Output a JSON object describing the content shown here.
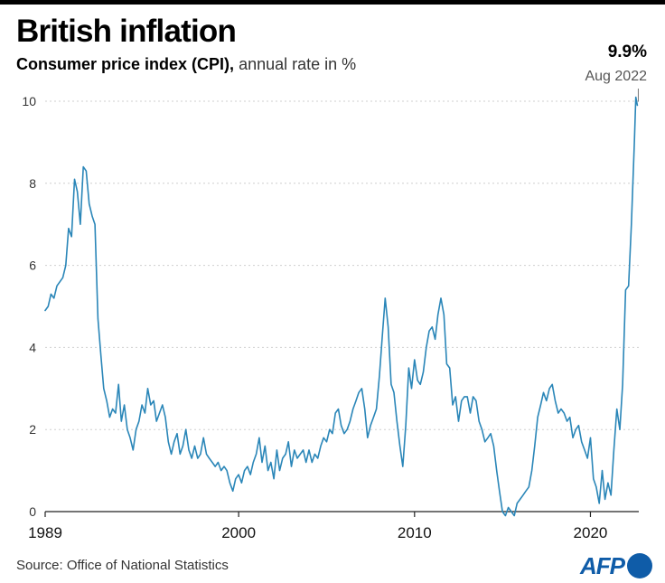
{
  "header": {
    "title": "British inflation",
    "subtitle_bold": "Consumer price index (CPI),",
    "subtitle_light": " annual rate in %"
  },
  "callout": {
    "value": "9.9%",
    "date": "Aug 2022"
  },
  "footer": {
    "source": "Source: Office of National Statistics",
    "logo": "AFP"
  },
  "colors": {
    "line": "#2a86b8",
    "grid": "#cfcfcf",
    "axis": "#222222",
    "brand": "#0f5ca8"
  },
  "chart_data": {
    "type": "line",
    "title": "British inflation",
    "subtitle": "Consumer price index (CPI), annual rate in %",
    "ylim": [
      0,
      10
    ],
    "xlim": [
      1989.0,
      2022.75
    ],
    "yticks": [
      0,
      2,
      4,
      6,
      8,
      10
    ],
    "xticks": [
      {
        "value": 1989,
        "label": "1989"
      },
      {
        "value": 2000,
        "label": "2000"
      },
      {
        "value": 2010,
        "label": "2010"
      },
      {
        "value": 2020,
        "label": "2020"
      }
    ],
    "grid": "horizontal dotted",
    "series": [
      {
        "points": [
          [
            1989.0,
            4.9
          ],
          [
            1989.17,
            5.0
          ],
          [
            1989.33,
            5.3
          ],
          [
            1989.5,
            5.2
          ],
          [
            1989.67,
            5.5
          ],
          [
            1989.83,
            5.6
          ],
          [
            1990.0,
            5.7
          ],
          [
            1990.17,
            6.0
          ],
          [
            1990.33,
            6.9
          ],
          [
            1990.5,
            6.7
          ],
          [
            1990.67,
            8.1
          ],
          [
            1990.83,
            7.8
          ],
          [
            1991.0,
            7.0
          ],
          [
            1991.17,
            8.4
          ],
          [
            1991.33,
            8.3
          ],
          [
            1991.5,
            7.5
          ],
          [
            1991.67,
            7.2
          ],
          [
            1991.83,
            7.0
          ],
          [
            1992.0,
            4.7
          ],
          [
            1992.17,
            3.8
          ],
          [
            1992.33,
            3.0
          ],
          [
            1992.5,
            2.7
          ],
          [
            1992.67,
            2.3
          ],
          [
            1992.83,
            2.5
          ],
          [
            1993.0,
            2.4
          ],
          [
            1993.17,
            3.1
          ],
          [
            1993.33,
            2.2
          ],
          [
            1993.5,
            2.6
          ],
          [
            1993.67,
            2.0
          ],
          [
            1993.83,
            1.8
          ],
          [
            1994.0,
            1.5
          ],
          [
            1994.17,
            2.0
          ],
          [
            1994.33,
            2.2
          ],
          [
            1994.5,
            2.6
          ],
          [
            1994.67,
            2.4
          ],
          [
            1994.83,
            3.0
          ],
          [
            1995.0,
            2.6
          ],
          [
            1995.17,
            2.7
          ],
          [
            1995.33,
            2.2
          ],
          [
            1995.5,
            2.4
          ],
          [
            1995.67,
            2.6
          ],
          [
            1995.83,
            2.3
          ],
          [
            1996.0,
            1.7
          ],
          [
            1996.17,
            1.4
          ],
          [
            1996.33,
            1.7
          ],
          [
            1996.5,
            1.9
          ],
          [
            1996.67,
            1.4
          ],
          [
            1996.83,
            1.6
          ],
          [
            1997.0,
            2.0
          ],
          [
            1997.17,
            1.5
          ],
          [
            1997.33,
            1.3
          ],
          [
            1997.5,
            1.6
          ],
          [
            1997.67,
            1.3
          ],
          [
            1997.83,
            1.4
          ],
          [
            1998.0,
            1.8
          ],
          [
            1998.17,
            1.4
          ],
          [
            1998.33,
            1.3
          ],
          [
            1998.5,
            1.2
          ],
          [
            1998.67,
            1.1
          ],
          [
            1998.83,
            1.2
          ],
          [
            1999.0,
            1.0
          ],
          [
            1999.17,
            1.1
          ],
          [
            1999.33,
            1.0
          ],
          [
            1999.5,
            0.7
          ],
          [
            1999.67,
            0.5
          ],
          [
            1999.83,
            0.8
          ],
          [
            2000.0,
            0.9
          ],
          [
            2000.17,
            0.7
          ],
          [
            2000.33,
            1.0
          ],
          [
            2000.5,
            1.1
          ],
          [
            2000.67,
            0.9
          ],
          [
            2000.83,
            1.2
          ],
          [
            2001.0,
            1.4
          ],
          [
            2001.17,
            1.8
          ],
          [
            2001.33,
            1.2
          ],
          [
            2001.5,
            1.6
          ],
          [
            2001.67,
            1.0
          ],
          [
            2001.83,
            1.2
          ],
          [
            2002.0,
            0.8
          ],
          [
            2002.17,
            1.5
          ],
          [
            2002.33,
            1.0
          ],
          [
            2002.5,
            1.3
          ],
          [
            2002.67,
            1.4
          ],
          [
            2002.83,
            1.7
          ],
          [
            2003.0,
            1.1
          ],
          [
            2003.17,
            1.5
          ],
          [
            2003.33,
            1.3
          ],
          [
            2003.5,
            1.4
          ],
          [
            2003.67,
            1.5
          ],
          [
            2003.83,
            1.2
          ],
          [
            2004.0,
            1.5
          ],
          [
            2004.17,
            1.2
          ],
          [
            2004.33,
            1.4
          ],
          [
            2004.5,
            1.3
          ],
          [
            2004.67,
            1.6
          ],
          [
            2004.83,
            1.8
          ],
          [
            2005.0,
            1.7
          ],
          [
            2005.17,
            2.0
          ],
          [
            2005.33,
            1.9
          ],
          [
            2005.5,
            2.4
          ],
          [
            2005.67,
            2.5
          ],
          [
            2005.83,
            2.1
          ],
          [
            2006.0,
            1.9
          ],
          [
            2006.17,
            2.0
          ],
          [
            2006.33,
            2.2
          ],
          [
            2006.5,
            2.5
          ],
          [
            2006.67,
            2.7
          ],
          [
            2006.83,
            2.9
          ],
          [
            2007.0,
            3.0
          ],
          [
            2007.17,
            2.5
          ],
          [
            2007.33,
            1.8
          ],
          [
            2007.5,
            2.1
          ],
          [
            2007.67,
            2.3
          ],
          [
            2007.83,
            2.5
          ],
          [
            2008.0,
            3.3
          ],
          [
            2008.17,
            4.3
          ],
          [
            2008.33,
            5.2
          ],
          [
            2008.5,
            4.5
          ],
          [
            2008.67,
            3.1
          ],
          [
            2008.83,
            2.9
          ],
          [
            2009.0,
            2.2
          ],
          [
            2009.17,
            1.6
          ],
          [
            2009.33,
            1.1
          ],
          [
            2009.5,
            2.1
          ],
          [
            2009.67,
            3.5
          ],
          [
            2009.83,
            3.0
          ],
          [
            2010.0,
            3.7
          ],
          [
            2010.17,
            3.2
          ],
          [
            2010.33,
            3.1
          ],
          [
            2010.5,
            3.4
          ],
          [
            2010.67,
            4.0
          ],
          [
            2010.83,
            4.4
          ],
          [
            2011.0,
            4.5
          ],
          [
            2011.17,
            4.2
          ],
          [
            2011.33,
            4.8
          ],
          [
            2011.5,
            5.2
          ],
          [
            2011.67,
            4.8
          ],
          [
            2011.83,
            3.6
          ],
          [
            2012.0,
            3.5
          ],
          [
            2012.17,
            2.6
          ],
          [
            2012.33,
            2.8
          ],
          [
            2012.5,
            2.2
          ],
          [
            2012.67,
            2.7
          ],
          [
            2012.83,
            2.8
          ],
          [
            2013.0,
            2.8
          ],
          [
            2013.17,
            2.4
          ],
          [
            2013.33,
            2.8
          ],
          [
            2013.5,
            2.7
          ],
          [
            2013.67,
            2.2
          ],
          [
            2013.83,
            2.0
          ],
          [
            2014.0,
            1.7
          ],
          [
            2014.17,
            1.8
          ],
          [
            2014.33,
            1.9
          ],
          [
            2014.5,
            1.6
          ],
          [
            2014.67,
            1.0
          ],
          [
            2014.83,
            0.5
          ],
          [
            2015.0,
            0.0
          ],
          [
            2015.17,
            -0.1
          ],
          [
            2015.33,
            0.1
          ],
          [
            2015.5,
            0.0
          ],
          [
            2015.67,
            -0.1
          ],
          [
            2015.83,
            0.2
          ],
          [
            2016.0,
            0.3
          ],
          [
            2016.17,
            0.4
          ],
          [
            2016.33,
            0.5
          ],
          [
            2016.5,
            0.6
          ],
          [
            2016.67,
            1.0
          ],
          [
            2016.83,
            1.6
          ],
          [
            2017.0,
            2.3
          ],
          [
            2017.17,
            2.6
          ],
          [
            2017.33,
            2.9
          ],
          [
            2017.5,
            2.7
          ],
          [
            2017.67,
            3.0
          ],
          [
            2017.83,
            3.1
          ],
          [
            2018.0,
            2.7
          ],
          [
            2018.17,
            2.4
          ],
          [
            2018.33,
            2.5
          ],
          [
            2018.5,
            2.4
          ],
          [
            2018.67,
            2.2
          ],
          [
            2018.83,
            2.3
          ],
          [
            2019.0,
            1.8
          ],
          [
            2019.17,
            2.0
          ],
          [
            2019.33,
            2.1
          ],
          [
            2019.5,
            1.7
          ],
          [
            2019.67,
            1.5
          ],
          [
            2019.83,
            1.3
          ],
          [
            2020.0,
            1.8
          ],
          [
            2020.17,
            0.8
          ],
          [
            2020.33,
            0.6
          ],
          [
            2020.5,
            0.2
          ],
          [
            2020.67,
            1.0
          ],
          [
            2020.83,
            0.3
          ],
          [
            2021.0,
            0.7
          ],
          [
            2021.17,
            0.4
          ],
          [
            2021.33,
            1.5
          ],
          [
            2021.5,
            2.5
          ],
          [
            2021.67,
            2.0
          ],
          [
            2021.83,
            3.1
          ],
          [
            2022.0,
            5.4
          ],
          [
            2022.17,
            5.5
          ],
          [
            2022.33,
            7.0
          ],
          [
            2022.5,
            9.0
          ],
          [
            2022.58,
            10.1
          ],
          [
            2022.67,
            9.9
          ]
        ]
      }
    ]
  }
}
